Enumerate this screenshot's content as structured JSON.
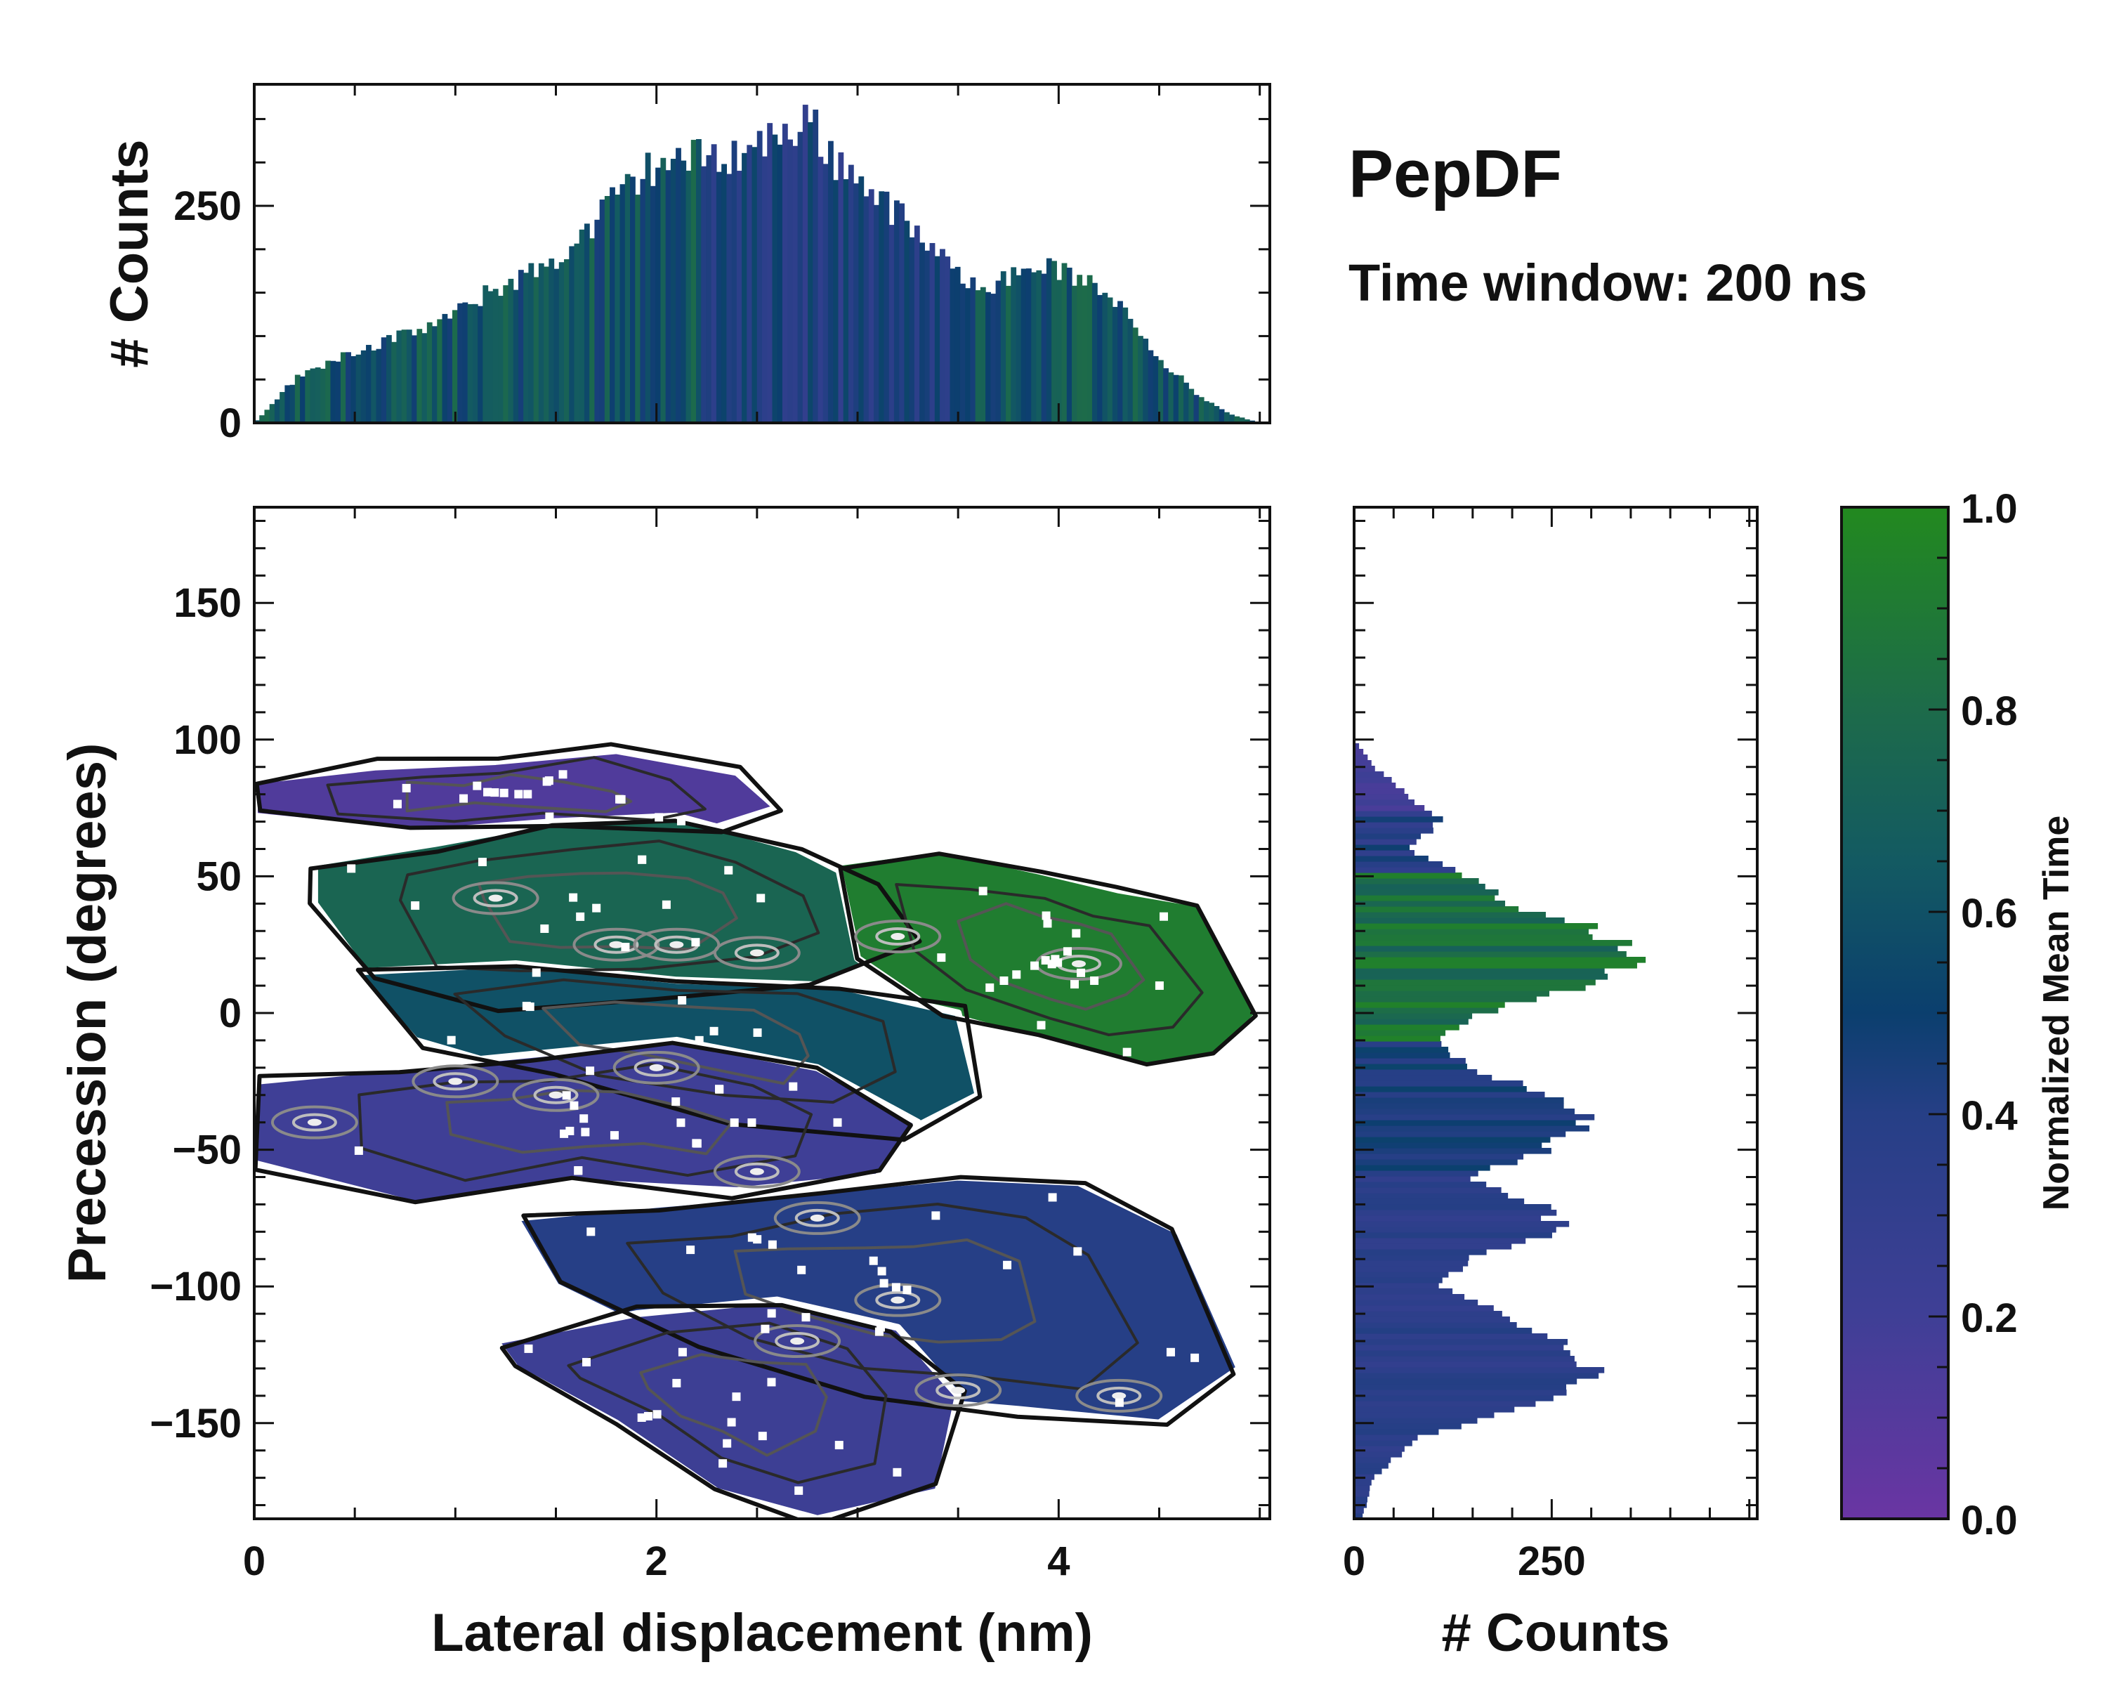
{
  "figure": {
    "title": "PepDF",
    "subtitle": "Time window: 200 ns"
  },
  "colors": {
    "low": "#6a35a3",
    "mid_low": "#2d3f8c",
    "mid": "#0b3f6e",
    "mid_high": "#1d6b4a",
    "high": "#22891f",
    "contour_dark": "#1a1a1a",
    "contour_light": "#9a9a9a"
  },
  "chart_data": [
    {
      "id": "main",
      "type": "heatmap",
      "xlabel": "Lateral displacement (nm)",
      "ylabel": "Precession (degrees)",
      "xlim": [
        0,
        5.05
      ],
      "ylim": [
        -185,
        185
      ],
      "x_ticks": [
        0,
        2,
        4
      ],
      "x_tick_labels": [
        "0",
        "2",
        "4"
      ],
      "y_ticks": [
        -150,
        -100,
        -50,
        0,
        50,
        100,
        150
      ],
      "y_tick_labels": [
        "−150",
        "−100",
        "−50",
        "0",
        "50",
        "100",
        "150"
      ],
      "regions": [
        {
          "name": "upper-left purple",
          "color_value": 0.12,
          "x": [
            0.0,
            0.6,
            1.2,
            1.8,
            2.4,
            2.6,
            2.3,
            1.5,
            0.8,
            0.0
          ],
          "y": [
            85,
            90,
            92,
            96,
            88,
            75,
            68,
            70,
            66,
            72
          ]
        },
        {
          "name": "left green band",
          "color_value": 0.75,
          "x": [
            0.3,
            0.9,
            1.5,
            2.1,
            2.7,
            3.1,
            3.3,
            2.8,
            2.0,
            1.2,
            0.6,
            0.3
          ],
          "y": [
            55,
            62,
            70,
            72,
            60,
            45,
            25,
            10,
            5,
            2,
            10,
            40
          ]
        },
        {
          "name": "right green lobe",
          "color_value": 0.92,
          "x": [
            2.9,
            3.4,
            3.9,
            4.3,
            4.7,
            5.0,
            4.8,
            4.4,
            3.9,
            3.4,
            3.0
          ],
          "y": [
            55,
            60,
            52,
            45,
            40,
            0,
            -15,
            -20,
            -10,
            0,
            20
          ]
        },
        {
          "name": "center teal",
          "color_value": 0.6,
          "x": [
            0.5,
            1.3,
            2.1,
            2.9,
            3.5,
            3.6,
            3.2,
            2.4,
            1.5,
            0.8
          ],
          "y": [
            15,
            18,
            12,
            10,
            0,
            -30,
            -45,
            -40,
            -25,
            -10
          ]
        },
        {
          "name": "middle purple",
          "color_value": 0.2,
          "x": [
            0.0,
            0.7,
            1.4,
            2.1,
            2.8,
            3.3,
            3.1,
            2.4,
            1.6,
            0.8,
            0.0
          ],
          "y": [
            -25,
            -20,
            -15,
            -10,
            -20,
            -40,
            -60,
            -65,
            -62,
            -70,
            -55
          ]
        },
        {
          "name": "lower blue",
          "color_value": 0.4,
          "x": [
            1.3,
            2.0,
            2.8,
            3.5,
            4.1,
            4.6,
            4.9,
            4.5,
            3.8,
            3.0,
            2.2,
            1.5
          ],
          "y": [
            -75,
            -70,
            -65,
            -60,
            -62,
            -80,
            -130,
            -150,
            -145,
            -140,
            -125,
            -100
          ]
        },
        {
          "name": "bottom purple",
          "color_value": 0.22,
          "x": [
            1.2,
            1.9,
            2.6,
            3.2,
            3.5,
            3.4,
            2.8,
            2.3,
            1.8,
            1.3
          ],
          "y": [
            -120,
            -110,
            -105,
            -115,
            -140,
            -175,
            -185,
            -175,
            -150,
            -130
          ]
        }
      ],
      "density_peaks": [
        {
          "x": 0.3,
          "y": -40
        },
        {
          "x": 1.2,
          "y": 42
        },
        {
          "x": 1.8,
          "y": 25
        },
        {
          "x": 2.1,
          "y": 25
        },
        {
          "x": 2.5,
          "y": 22
        },
        {
          "x": 3.2,
          "y": 28
        },
        {
          "x": 4.1,
          "y": 18
        },
        {
          "x": 2.0,
          "y": -20
        },
        {
          "x": 2.5,
          "y": -58
        },
        {
          "x": 2.8,
          "y": -75
        },
        {
          "x": 3.2,
          "y": -105
        },
        {
          "x": 2.7,
          "y": -120
        },
        {
          "x": 3.5,
          "y": -138
        },
        {
          "x": 4.3,
          "y": -140
        },
        {
          "x": 1.5,
          "y": -30
        },
        {
          "x": 1.0,
          "y": -25
        }
      ]
    },
    {
      "id": "top-hist",
      "type": "bar",
      "ylabel": "# Counts",
      "xlim": [
        0,
        5.05
      ],
      "ylim": [
        0,
        390
      ],
      "y_ticks": [
        0,
        250
      ],
      "y_tick_labels": [
        "0",
        "250"
      ],
      "x": [
        0.0,
        0.2,
        0.4,
        0.6,
        0.8,
        1.0,
        1.2,
        1.4,
        1.6,
        1.8,
        2.0,
        2.2,
        2.4,
        2.6,
        2.75,
        2.9,
        3.1,
        3.3,
        3.5,
        3.7,
        3.9,
        4.1,
        4.3,
        4.5,
        4.7,
        4.85,
        5.0
      ],
      "values": [
        0,
        50,
        75,
        90,
        105,
        125,
        155,
        175,
        205,
        260,
        300,
        305,
        310,
        330,
        350,
        300,
        265,
        215,
        170,
        160,
        185,
        165,
        140,
        75,
        30,
        10,
        0
      ]
    },
    {
      "id": "right-hist",
      "type": "bar",
      "orientation": "horizontal",
      "xlabel": "# Counts",
      "xlim": [
        0,
        510
      ],
      "x_ticks": [
        0,
        250
      ],
      "x_tick_labels": [
        "0",
        "250"
      ],
      "y": [
        -185,
        -170,
        -155,
        -140,
        -130,
        -120,
        -110,
        -100,
        -90,
        -80,
        -70,
        -60,
        -50,
        -40,
        -30,
        -20,
        -10,
        0,
        10,
        20,
        30,
        40,
        50,
        60,
        70,
        80,
        90,
        100
      ],
      "values": [
        10,
        25,
        80,
        260,
        310,
        260,
        180,
        110,
        140,
        270,
        230,
        150,
        240,
        300,
        240,
        150,
        100,
        160,
        290,
        360,
        310,
        200,
        140,
        70,
        110,
        70,
        25,
        0
      ]
    }
  ],
  "colorbar": {
    "label": "Normalized Mean Time",
    "range": [
      0,
      1
    ],
    "ticks": [
      0.0,
      0.2,
      0.4,
      0.6,
      0.8,
      1.0
    ],
    "tick_labels": [
      "0.0",
      "0.2",
      "0.4",
      "0.6",
      "0.8",
      "1.0"
    ]
  }
}
